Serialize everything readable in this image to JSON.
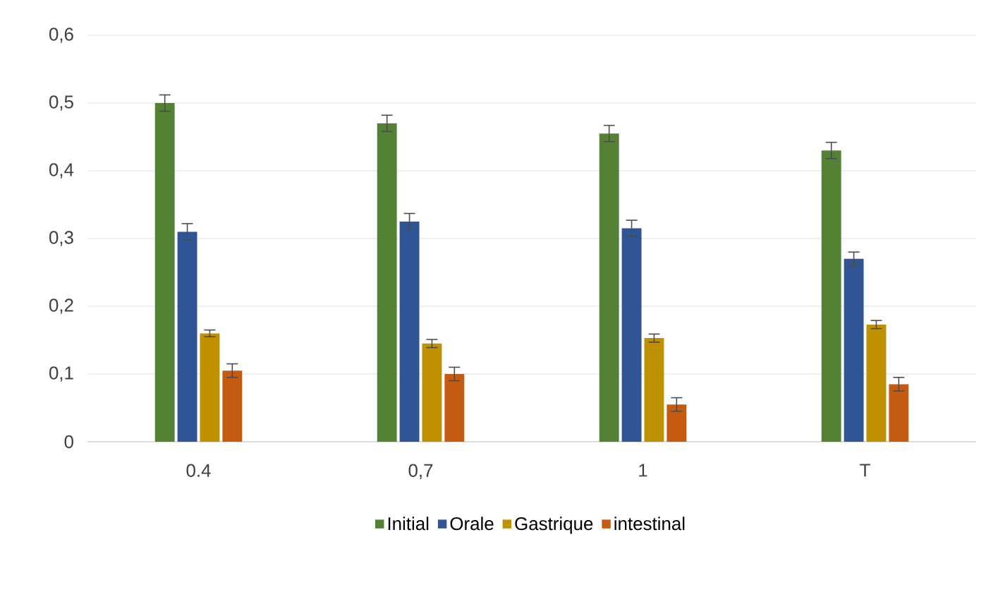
{
  "chart_data": {
    "type": "bar",
    "categories": [
      "0.4",
      "0,7",
      "1",
      "T"
    ],
    "series": [
      {
        "name": "Initial",
        "color": "#548235",
        "values": [
          0.5,
          0.47,
          0.455,
          0.43
        ],
        "errors": [
          0.012,
          0.012,
          0.012,
          0.012
        ]
      },
      {
        "name": "Orale",
        "color": "#2f5597",
        "values": [
          0.31,
          0.325,
          0.315,
          0.27
        ],
        "errors": [
          0.012,
          0.012,
          0.012,
          0.01
        ]
      },
      {
        "name": "Gastrique",
        "color": "#bf9000",
        "values": [
          0.16,
          0.145,
          0.153,
          0.173
        ],
        "errors": [
          0.005,
          0.006,
          0.006,
          0.006
        ]
      },
      {
        "name": "intestinal",
        "color": "#c55a11",
        "values": [
          0.105,
          0.1,
          0.055,
          0.085
        ],
        "errors": [
          0.01,
          0.01,
          0.01,
          0.01
        ]
      }
    ],
    "ylim": [
      0,
      0.6
    ],
    "yticks": [
      0,
      {
        "value": 0.1,
        "label": "0,1"
      },
      {
        "value": 0.2,
        "label": "0,2"
      },
      {
        "value": 0.3,
        "label": "0,3"
      },
      {
        "value": 0.4,
        "label": "0,4"
      },
      {
        "value": 0.5,
        "label": "0,5"
      },
      {
        "value": 0.6,
        "label": "0,6"
      }
    ],
    "grid": "y",
    "legend": "bottom"
  }
}
